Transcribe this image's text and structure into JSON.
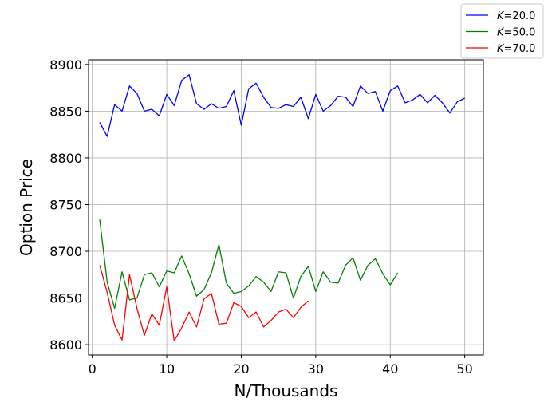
{
  "chart_data": {
    "type": "line",
    "xlabel": "N/Thousands",
    "ylabel": "Option Price",
    "xlim": [
      -0.5,
      52.5
    ],
    "ylim": [
      8589,
      8905
    ],
    "xticks": [
      0,
      10,
      20,
      30,
      40,
      50
    ],
    "yticks": [
      8600,
      8650,
      8700,
      8750,
      8800,
      8850,
      8900
    ],
    "grid": true,
    "legend_position": "top-right",
    "series": [
      {
        "name_var": "K",
        "name_value": "=20.0",
        "color": "#0000ff",
        "x": [
          1,
          2,
          3,
          4,
          5,
          6,
          7,
          8,
          9,
          10,
          11,
          12,
          13,
          14,
          15,
          16,
          17,
          18,
          19,
          20,
          21,
          22,
          23,
          24,
          25,
          26,
          27,
          28,
          29,
          30,
          31,
          32,
          33,
          34,
          35,
          36,
          37,
          38,
          39,
          40,
          41,
          42,
          43,
          44,
          45,
          46,
          47,
          48,
          49,
          50
        ],
        "values": [
          8838,
          8823,
          8857,
          8850,
          8877,
          8869,
          8850,
          8852,
          8845,
          8868,
          8856,
          8883,
          8889,
          8858,
          8852,
          8858,
          8853,
          8855,
          8872,
          8835,
          8874,
          8880,
          8865,
          8854,
          8853,
          8857,
          8855,
          8865,
          8842,
          8868,
          8850,
          8856,
          8866,
          8865,
          8855,
          8877,
          8869,
          8871,
          8850,
          8872,
          8877,
          8859,
          8862,
          8868,
          8859,
          8867,
          8859,
          8848,
          8860,
          8864
        ]
      },
      {
        "name_var": "K",
        "name_value": "=50.0",
        "color": "#008000",
        "x": [
          1,
          2,
          3,
          4,
          5,
          6,
          7,
          8,
          9,
          10,
          11,
          12,
          13,
          14,
          15,
          16,
          17,
          18,
          19,
          20,
          21,
          22,
          23,
          24,
          25,
          26,
          27,
          28,
          29,
          30,
          31,
          32,
          33,
          34,
          35,
          36,
          37,
          38,
          39,
          40,
          41
        ],
        "values": [
          8734,
          8667,
          8639,
          8678,
          8648,
          8650,
          8675,
          8677,
          8662,
          8679,
          8677,
          8695,
          8676,
          8652,
          8659,
          8677,
          8707,
          8666,
          8655,
          8657,
          8663,
          8673,
          8667,
          8657,
          8678,
          8677,
          8650,
          8673,
          8684,
          8657,
          8678,
          8667,
          8666,
          8685,
          8693,
          8669,
          8685,
          8692,
          8676,
          8664,
          8677
        ]
      },
      {
        "name_var": "K",
        "name_value": "=70.0",
        "color": "#ff0000",
        "x": [
          1,
          2,
          3,
          4,
          5,
          6,
          7,
          8,
          9,
          10,
          11,
          12,
          13,
          14,
          15,
          16,
          17,
          18,
          19,
          20,
          21,
          22,
          23,
          24,
          25,
          26,
          27,
          28,
          29
        ],
        "values": [
          8685,
          8656,
          8621,
          8605,
          8675,
          8639,
          8610,
          8633,
          8621,
          8662,
          8604,
          8618,
          8635,
          8619,
          8649,
          8655,
          8622,
          8623,
          8645,
          8641,
          8629,
          8635,
          8619,
          8626,
          8635,
          8638,
          8629,
          8640,
          8647
        ]
      }
    ]
  }
}
